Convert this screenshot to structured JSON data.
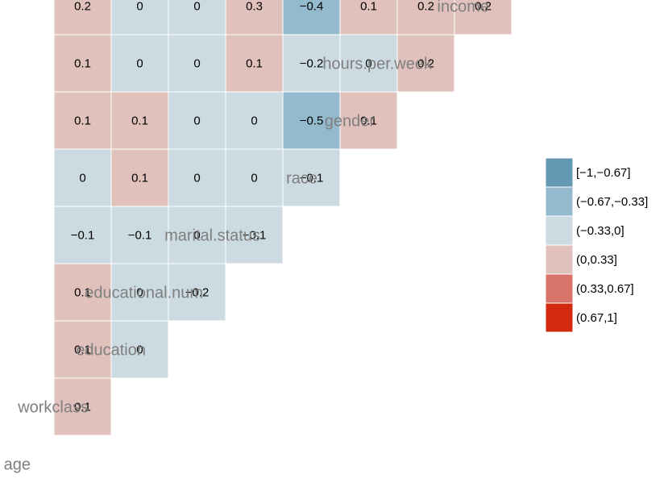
{
  "chart_data": {
    "type": "heatmap",
    "variables": [
      "age",
      "workclass",
      "education",
      "educational.num",
      "marital.status",
      "race",
      "gender",
      "hours.per.week",
      "income"
    ],
    "cells": [
      {
        "row": "workclass",
        "col": "age",
        "value": 0.1,
        "label": "0.1"
      },
      {
        "row": "education",
        "col": "age",
        "value": 0.1,
        "label": "0.1"
      },
      {
        "row": "education",
        "col": "workclass",
        "value": 0,
        "label": "0"
      },
      {
        "row": "educational.num",
        "col": "age",
        "value": 0.1,
        "label": "0.1"
      },
      {
        "row": "educational.num",
        "col": "workclass",
        "value": 0,
        "label": "0"
      },
      {
        "row": "educational.num",
        "col": "education",
        "value": -0.2,
        "label": "−0.2"
      },
      {
        "row": "marital.status",
        "col": "age",
        "value": -0.1,
        "label": "−0.1"
      },
      {
        "row": "marital.status",
        "col": "workclass",
        "value": -0.1,
        "label": "−0.1"
      },
      {
        "row": "marital.status",
        "col": "education",
        "value": 0,
        "label": "0"
      },
      {
        "row": "marital.status",
        "col": "educational.num",
        "value": -0.1,
        "label": "−0.1"
      },
      {
        "row": "race",
        "col": "age",
        "value": 0,
        "label": "0"
      },
      {
        "row": "race",
        "col": "workclass",
        "value": 0.1,
        "label": "0.1"
      },
      {
        "row": "race",
        "col": "education",
        "value": 0,
        "label": "0"
      },
      {
        "row": "race",
        "col": "educational.num",
        "value": 0,
        "label": "0"
      },
      {
        "row": "race",
        "col": "marital.status",
        "value": -0.1,
        "label": "−0.1"
      },
      {
        "row": "gender",
        "col": "age",
        "value": 0.1,
        "label": "0.1"
      },
      {
        "row": "gender",
        "col": "workclass",
        "value": 0.1,
        "label": "0.1"
      },
      {
        "row": "gender",
        "col": "education",
        "value": 0,
        "label": "0"
      },
      {
        "row": "gender",
        "col": "educational.num",
        "value": 0,
        "label": "0"
      },
      {
        "row": "gender",
        "col": "marital.status",
        "value": -0.5,
        "label": "−0.5"
      },
      {
        "row": "gender",
        "col": "race",
        "value": 0.1,
        "label": "0.1"
      },
      {
        "row": "hours.per.week",
        "col": "age",
        "value": 0.1,
        "label": "0.1"
      },
      {
        "row": "hours.per.week",
        "col": "workclass",
        "value": 0,
        "label": "0"
      },
      {
        "row": "hours.per.week",
        "col": "education",
        "value": 0,
        "label": "0"
      },
      {
        "row": "hours.per.week",
        "col": "educational.num",
        "value": 0.1,
        "label": "0.1"
      },
      {
        "row": "hours.per.week",
        "col": "marital.status",
        "value": -0.2,
        "label": "−0.2"
      },
      {
        "row": "hours.per.week",
        "col": "race",
        "value": 0,
        "label": "0"
      },
      {
        "row": "hours.per.week",
        "col": "gender",
        "value": 0.2,
        "label": "0.2"
      },
      {
        "row": "income",
        "col": "age",
        "value": 0.2,
        "label": "0.2"
      },
      {
        "row": "income",
        "col": "workclass",
        "value": 0,
        "label": "0"
      },
      {
        "row": "income",
        "col": "education",
        "value": 0,
        "label": "0"
      },
      {
        "row": "income",
        "col": "educational.num",
        "value": 0.3,
        "label": "0.3"
      },
      {
        "row": "income",
        "col": "marital.status",
        "value": -0.4,
        "label": "−0.4"
      },
      {
        "row": "income",
        "col": "race",
        "value": 0.1,
        "label": "0.1"
      },
      {
        "row": "income",
        "col": "gender",
        "value": 0.2,
        "label": "0.2"
      },
      {
        "row": "income",
        "col": "hours.per.week",
        "value": 0.2,
        "label": "0.2"
      }
    ],
    "bins": [
      {
        "label": "[−1,−0.67]",
        "min": -1,
        "max": -0.67,
        "color": "#6599b3"
      },
      {
        "label": "(−0.67,−0.33]",
        "min": -0.67,
        "max": -0.33,
        "color": "#93bacd"
      },
      {
        "label": "(−0.33,0]",
        "min": -0.33,
        "max": 0,
        "color": "#ccdbe2"
      },
      {
        "label": "(0,0.33]",
        "min": 0,
        "max": 0.33,
        "color": "#e1c1bc"
      },
      {
        "label": "(0.33,0.67]",
        "min": 0.33,
        "max": 0.67,
        "color": "#d8736a"
      },
      {
        "label": "(0.67,1]",
        "min": 0.67,
        "max": 1,
        "color": "#d12a0f"
      }
    ],
    "legend_position": "right"
  }
}
